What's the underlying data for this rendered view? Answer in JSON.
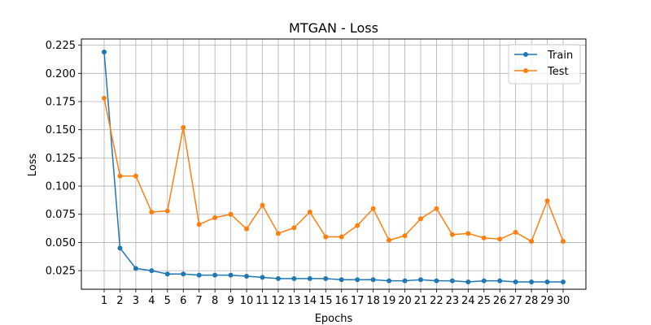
{
  "chart_data": {
    "type": "line",
    "title": "MTGAN - Loss",
    "xlabel": "Epochs",
    "ylabel": "Loss",
    "categories": [
      "1",
      "2",
      "3",
      "4",
      "5",
      "6",
      "7",
      "8",
      "9",
      "10",
      "11",
      "12",
      "13",
      "14",
      "15",
      "16",
      "17",
      "18",
      "19",
      "20",
      "21",
      "22",
      "23",
      "24",
      "25",
      "26",
      "27",
      "28",
      "29",
      "30"
    ],
    "yticks": [
      "0.025",
      "0.050",
      "0.075",
      "0.100",
      "0.125",
      "0.150",
      "0.175",
      "0.200",
      "0.225"
    ],
    "ylim": [
      0.0085,
      0.2305
    ],
    "grid": true,
    "legend_position": "top-right",
    "series": [
      {
        "name": "Train",
        "color": "#1f77b4",
        "marker": "circle",
        "values": [
          0.219,
          0.045,
          0.027,
          0.025,
          0.022,
          0.022,
          0.021,
          0.021,
          0.021,
          0.02,
          0.019,
          0.018,
          0.018,
          0.018,
          0.018,
          0.017,
          0.017,
          0.017,
          0.016,
          0.016,
          0.017,
          0.016,
          0.016,
          0.015,
          0.016,
          0.016,
          0.015,
          0.015,
          0.015,
          0.015
        ]
      },
      {
        "name": "Test",
        "color": "#ff7f0e",
        "marker": "circle",
        "values": [
          0.178,
          0.109,
          0.109,
          0.077,
          0.078,
          0.152,
          0.066,
          0.072,
          0.075,
          0.062,
          0.083,
          0.058,
          0.063,
          0.077,
          0.055,
          0.055,
          0.065,
          0.08,
          0.052,
          0.056,
          0.071,
          0.08,
          0.057,
          0.058,
          0.054,
          0.053,
          0.059,
          0.051,
          0.087,
          0.051
        ]
      }
    ]
  }
}
